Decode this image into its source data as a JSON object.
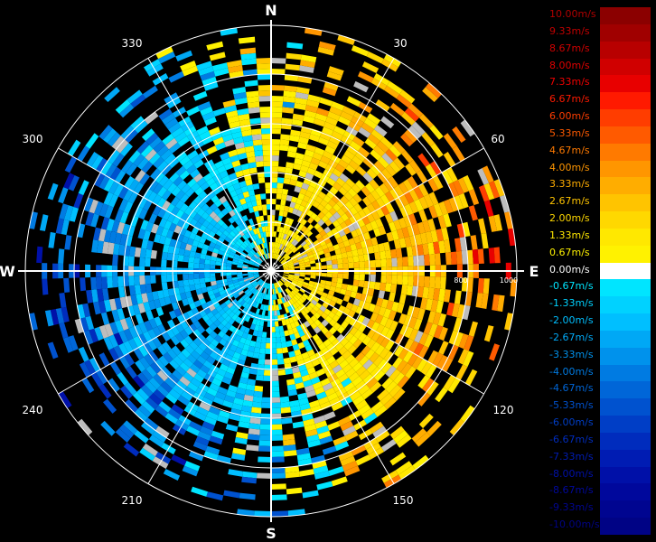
{
  "radar": {
    "compass": {
      "n": "N",
      "e": "E",
      "s": "S",
      "w": "W"
    },
    "bearings": [
      "30",
      "60",
      "120",
      "150",
      "210",
      "240",
      "300",
      "330"
    ],
    "range_labels": [
      "800",
      "1000"
    ]
  },
  "legend": {
    "colors": {
      "background": "#000000",
      "grid": "#ffffff",
      "axis": "#ffffff"
    },
    "items": [
      {
        "label": "10.00m/s",
        "color": "#8b0000",
        "text_color": "#b00000"
      },
      {
        "label": "9.33m/s",
        "color": "#a00000",
        "text_color": "#c00000"
      },
      {
        "label": "8.67m/s",
        "color": "#b80000",
        "text_color": "#d00000"
      },
      {
        "label": "8.00m/s",
        "color": "#d00000",
        "text_color": "#e00000"
      },
      {
        "label": "7.33m/s",
        "color": "#e80000",
        "text_color": "#f00000"
      },
      {
        "label": "6.67m/s",
        "color": "#ff1a00",
        "text_color": "#ff1a00"
      },
      {
        "label": "6.00m/s",
        "color": "#ff3d00",
        "text_color": "#ff3d00"
      },
      {
        "label": "5.33m/s",
        "color": "#ff5a00",
        "text_color": "#ff5a00"
      },
      {
        "label": "4.67m/s",
        "color": "#ff7a00",
        "text_color": "#ff7a00"
      },
      {
        "label": "4.00m/s",
        "color": "#ff9600",
        "text_color": "#ff9600"
      },
      {
        "label": "3.33m/s",
        "color": "#ffad00",
        "text_color": "#ffad00"
      },
      {
        "label": "2.67m/s",
        "color": "#ffc400",
        "text_color": "#ffc400"
      },
      {
        "label": "2.00m/s",
        "color": "#ffd800",
        "text_color": "#ffd800"
      },
      {
        "label": "1.33m/s",
        "color": "#ffe800",
        "text_color": "#ffe800"
      },
      {
        "label": "0.67m/s",
        "color": "#fff200",
        "text_color": "#fff200"
      },
      {
        "label": "0.00m/s",
        "color": "#ffffff",
        "text_color": "#ffffff"
      },
      {
        "label": "-0.67m/s",
        "color": "#00e5ff",
        "text_color": "#00e5ff"
      },
      {
        "label": "-1.33m/s",
        "color": "#00d2ff",
        "text_color": "#00d2ff"
      },
      {
        "label": "-2.00m/s",
        "color": "#00bfff",
        "text_color": "#00bfff"
      },
      {
        "label": "-2.67m/s",
        "color": "#00a8f5",
        "text_color": "#00a8f5"
      },
      {
        "label": "-3.33m/s",
        "color": "#0092ec",
        "text_color": "#0092ec"
      },
      {
        "label": "-4.00m/s",
        "color": "#007be2",
        "text_color": "#007be2"
      },
      {
        "label": "-4.67m/s",
        "color": "#0066d8",
        "text_color": "#0066d8"
      },
      {
        "label": "-5.33m/s",
        "color": "#0052cf",
        "text_color": "#0052cf"
      },
      {
        "label": "-6.00m/s",
        "color": "#003ec6",
        "text_color": "#003ec6"
      },
      {
        "label": "-6.67m/s",
        "color": "#002cbd",
        "text_color": "#002cbd"
      },
      {
        "label": "-7.33m/s",
        "color": "#001cb3",
        "text_color": "#001cb3"
      },
      {
        "label": "-8.00m/s",
        "color": "#0010a8",
        "text_color": "#0010a8"
      },
      {
        "label": "-8.67m/s",
        "color": "#00089c",
        "text_color": "#00089c"
      },
      {
        "label": "-9.33m/s",
        "color": "#000590",
        "text_color": "#000590"
      },
      {
        "label": "-10.00m/s",
        "color": "#000385",
        "text_color": "#000385"
      }
    ]
  }
}
